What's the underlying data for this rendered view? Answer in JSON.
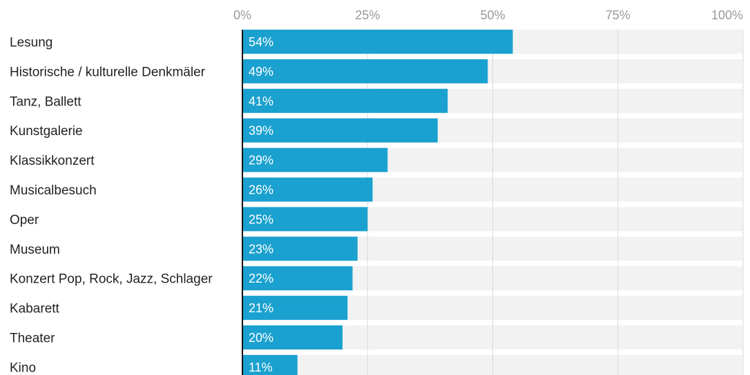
{
  "chart_data": {
    "type": "bar",
    "orientation": "horizontal",
    "categories": [
      "Lesung",
      "Historische / kulturelle Denkmäler",
      "Tanz, Ballett",
      "Kunstgalerie",
      "Klassikkonzert",
      "Musicalbesuch",
      "Oper",
      "Museum",
      "Konzert Pop, Rock, Jazz, Schlager",
      "Kabarett",
      "Theater",
      "Kino"
    ],
    "values": [
      54,
      49,
      41,
      39,
      29,
      26,
      25,
      23,
      22,
      21,
      20,
      11
    ],
    "value_labels": [
      "54%",
      "49%",
      "41%",
      "39%",
      "29%",
      "26%",
      "25%",
      "23%",
      "22%",
      "21%",
      "20%",
      "11%"
    ],
    "xlim": [
      0,
      100
    ],
    "x_ticks": [
      0,
      25,
      50,
      75,
      100
    ],
    "x_tick_labels": [
      "0%",
      "25%",
      "50%",
      "75%",
      "100%"
    ],
    "axis_position": "top",
    "grid": true,
    "bar_color": "#1aa1cf",
    "track_color": "#f2f2f2",
    "grid_color": "#d9d9d9",
    "title": "",
    "xlabel": "",
    "ylabel": ""
  }
}
